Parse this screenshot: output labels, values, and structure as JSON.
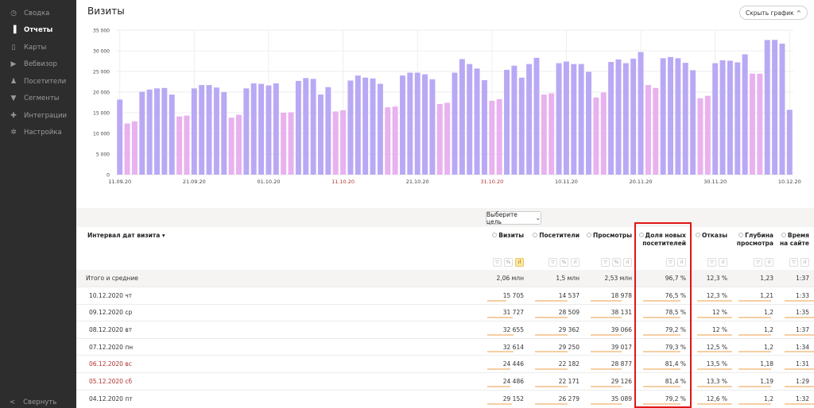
{
  "sidebar": {
    "items": [
      {
        "label": "Сводка",
        "icon": "dashboard-icon",
        "active": false
      },
      {
        "label": "Отчеты",
        "icon": "bar-chart-icon",
        "active": true
      },
      {
        "label": "Карты",
        "icon": "map-icon",
        "active": false
      },
      {
        "label": "Вебвизор",
        "icon": "play-icon",
        "active": false
      },
      {
        "label": "Посетители",
        "icon": "user-icon",
        "active": false
      },
      {
        "label": "Сегменты",
        "icon": "filter-icon",
        "active": false
      },
      {
        "label": "Интеграции",
        "icon": "puzzle-icon",
        "active": false
      },
      {
        "label": "Настройка",
        "icon": "gear-icon",
        "active": false
      }
    ],
    "collapse_label": "Свернуть"
  },
  "header": {
    "title": "Визиты",
    "hide_chart": "Скрыть график"
  },
  "colors": {
    "weekday": "#b9a9f4",
    "weekend": "#e8b1ef",
    "highlight": "#e01515",
    "weekend_text": "#b03030"
  },
  "chart_data": {
    "type": "bar",
    "title": "",
    "xlabel": "",
    "ylabel": "",
    "ylim": [
      0,
      35000
    ],
    "grid": true,
    "yticks": [
      "0",
      "5 000",
      "10 000",
      "15 000",
      "20 000",
      "25 000",
      "30 000",
      "35 000"
    ],
    "xticks": [
      {
        "label": "11.09.20",
        "red": false
      },
      {
        "label": "21.09.20",
        "red": false
      },
      {
        "label": "01.10.20",
        "red": false
      },
      {
        "label": "11.10.20",
        "red": true
      },
      {
        "label": "21.10.20",
        "red": false
      },
      {
        "label": "31.10.20",
        "red": true
      },
      {
        "label": "10.11.20",
        "red": false
      },
      {
        "label": "20.11.20",
        "red": false
      },
      {
        "label": "30.11.20",
        "red": false
      },
      {
        "label": "10.12.20",
        "red": false
      }
    ],
    "start_date": "11.09.20",
    "values": [
      18200,
      12400,
      12900,
      20100,
      20600,
      20900,
      21000,
      19400,
      14100,
      14300,
      20900,
      21700,
      21700,
      21100,
      20000,
      13800,
      14500,
      20900,
      22100,
      22000,
      21600,
      22100,
      15000,
      15100,
      22700,
      23400,
      23200,
      19400,
      21200,
      15300,
      15600,
      22800,
      24000,
      23500,
      23300,
      22000,
      16300,
      16500,
      24000,
      24700,
      24700,
      24300,
      23100,
      17100,
      17400,
      24700,
      28000,
      26800,
      25700,
      22900,
      17900,
      18300,
      25400,
      26400,
      23500,
      26800,
      28300,
      19400,
      19700,
      27000,
      27400,
      26800,
      26800,
      24900,
      18700,
      19900,
      27300,
      27900,
      27000,
      28100,
      29700,
      21700,
      21000,
      28200,
      28500,
      28200,
      27100,
      25300,
      18500,
      19100,
      27000,
      27700,
      27600,
      27200,
      29152,
      24486,
      24446,
      32614,
      32655,
      31727,
      15705
    ]
  },
  "goal_select": "Выберите цель",
  "table": {
    "first_header": "Интервал дат визита",
    "columns": [
      {
        "label": "Визиты",
        "icons": [
          "filter",
          "percent",
          "chart-on"
        ]
      },
      {
        "label": "Посетители",
        "icons": [
          "filter",
          "percent",
          "chart"
        ]
      },
      {
        "label": "Просмотры",
        "icons": [
          "filter",
          "percent",
          "chart"
        ]
      },
      {
        "label": "Доля новых посетителей",
        "icons": [
          "filter",
          "chart"
        ]
      },
      {
        "label": "Отказы",
        "icons": [
          "filter",
          "chart"
        ]
      },
      {
        "label": "Глубина просмотра",
        "icons": [
          "filter",
          "chart"
        ]
      },
      {
        "label": "Время на сайте",
        "icons": [
          "filter",
          "chart"
        ]
      }
    ],
    "total": {
      "label": "Итого и средние",
      "values": [
        "2,06 млн",
        "1,5 млн",
        "2,53 млн",
        "96,7 %",
        "12,3 %",
        "1,23",
        "1:37"
      ]
    },
    "rows": [
      {
        "date": "10.12.2020 чт",
        "weekend": false,
        "values": [
          "15 705",
          "14 537",
          "18 978",
          "76,5 %",
          "12,3 %",
          "1,21",
          "1:33"
        ]
      },
      {
        "date": "09.12.2020 ср",
        "weekend": false,
        "values": [
          "31 727",
          "28 509",
          "38 131",
          "78,5 %",
          "12 %",
          "1,2",
          "1:35"
        ]
      },
      {
        "date": "08.12.2020 вт",
        "weekend": false,
        "values": [
          "32 655",
          "29 362",
          "39 066",
          "79,2 %",
          "12 %",
          "1,2",
          "1:37"
        ]
      },
      {
        "date": "07.12.2020 пн",
        "weekend": false,
        "values": [
          "32 614",
          "29 250",
          "39 017",
          "79,3 %",
          "12,5 %",
          "1,2",
          "1:34"
        ]
      },
      {
        "date": "06.12.2020 вс",
        "weekend": true,
        "values": [
          "24 446",
          "22 182",
          "28 877",
          "81,4 %",
          "13,5 %",
          "1,18",
          "1:31"
        ]
      },
      {
        "date": "05.12.2020 сб",
        "weekend": true,
        "values": [
          "24 486",
          "22 171",
          "29 126",
          "81,4 %",
          "13,3 %",
          "1,19",
          "1:29"
        ]
      },
      {
        "date": "04.12.2020 пт",
        "weekend": false,
        "values": [
          "29 152",
          "26 279",
          "35 089",
          "79,2 %",
          "12,6 %",
          "1,2",
          "1:32"
        ]
      }
    ]
  }
}
